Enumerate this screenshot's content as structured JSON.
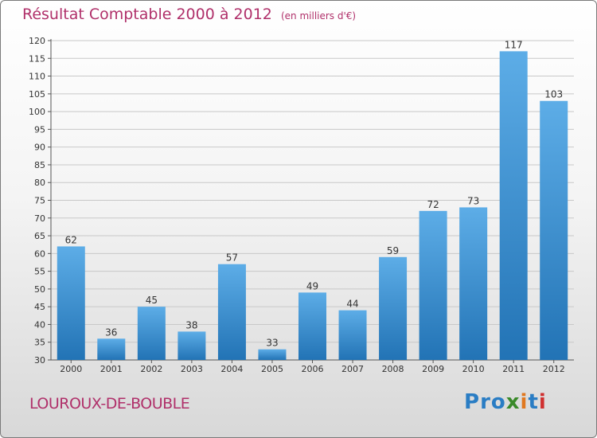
{
  "title": {
    "main": "Résultat Comptable 2000 à 2012",
    "sub": "(en milliers d'€)"
  },
  "commune": "LOUROUX-DE-BOUBLE",
  "logo": {
    "text": "Proxiti",
    "letters": [
      "P",
      "r",
      "o",
      "x",
      "i",
      "t",
      "i"
    ],
    "letter_colors": [
      "#2a7dc4",
      "#2a7dc4",
      "#2a7dc4",
      "#3a8a2a",
      "#e07820",
      "#2a7dc4",
      "#d03030"
    ]
  },
  "colors": {
    "title": "#b0306a",
    "bar_light": "#5dade7",
    "bar_dark": "#2273b5",
    "axis": "#555555"
  },
  "chart_data": {
    "type": "bar",
    "title": "Résultat Comptable 2000 à 2012",
    "subtitle": "(en milliers d'€)",
    "xlabel": "",
    "ylabel": "",
    "categories": [
      "2000",
      "2001",
      "2002",
      "2003",
      "2004",
      "2005",
      "2006",
      "2007",
      "2008",
      "2009",
      "2010",
      "2011",
      "2012"
    ],
    "values": [
      62,
      36,
      45,
      38,
      57,
      33,
      49,
      44,
      59,
      72,
      73,
      117,
      103
    ],
    "ylim": [
      30,
      120
    ],
    "yticks": [
      30,
      35,
      40,
      45,
      50,
      55,
      60,
      65,
      70,
      75,
      80,
      85,
      90,
      95,
      100,
      105,
      110,
      115,
      120
    ],
    "grid": true,
    "data_labels": true
  }
}
